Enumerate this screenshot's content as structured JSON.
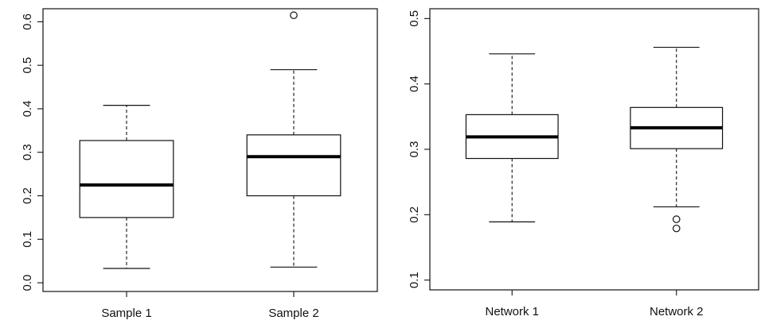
{
  "chart_data": [
    {
      "type": "box",
      "title": "",
      "xlabel": "",
      "ylabel": "",
      "ylim": [
        -0.02,
        0.63
      ],
      "yticks": [
        0.0,
        0.1,
        0.2,
        0.3,
        0.4,
        0.5,
        0.6
      ],
      "ytick_labels": [
        "0.0",
        "0.1",
        "0.2",
        "0.3",
        "0.4",
        "0.5",
        "0.6"
      ],
      "categories": [
        "Sample 1",
        "Sample 2"
      ],
      "boxes": [
        {
          "category": "Sample 1",
          "whisker_low": 0.033,
          "q1": 0.15,
          "median": 0.225,
          "q3": 0.327,
          "whisker_high": 0.408,
          "outliers": []
        },
        {
          "category": "Sample 2",
          "whisker_low": 0.036,
          "q1": 0.2,
          "median": 0.29,
          "q3": 0.34,
          "whisker_high": 0.49,
          "outliers": [
            0.615
          ]
        }
      ],
      "grid": false,
      "legend": "none"
    },
    {
      "type": "box",
      "title": "",
      "xlabel": "",
      "ylabel": "",
      "ylim": [
        0.085,
        0.515
      ],
      "yticks": [
        0.1,
        0.2,
        0.3,
        0.4,
        0.5
      ],
      "ytick_labels": [
        "0.1",
        "0.2",
        "0.3",
        "0.4",
        "0.5"
      ],
      "categories": [
        "Network 1",
        "Network 2"
      ],
      "boxes": [
        {
          "category": "Network 1",
          "whisker_low": 0.189,
          "q1": 0.286,
          "median": 0.319,
          "q3": 0.353,
          "whisker_high": 0.446,
          "outliers": []
        },
        {
          "category": "Network 2",
          "whisker_low": 0.212,
          "q1": 0.301,
          "median": 0.333,
          "q3": 0.364,
          "whisker_high": 0.456,
          "outliers": [
            0.193,
            0.179
          ]
        }
      ],
      "grid": false,
      "legend": "none"
    }
  ]
}
